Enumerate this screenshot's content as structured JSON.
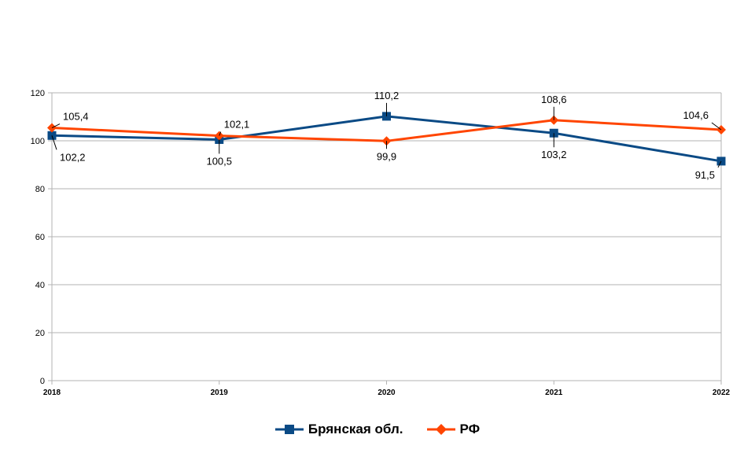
{
  "chart_data": {
    "type": "line",
    "title": "",
    "xlabel": "",
    "ylabel": "",
    "categories": [
      "2018",
      "2019",
      "2020",
      "2021",
      "2022"
    ],
    "ylim": [
      0,
      120
    ],
    "yticks": [
      "0",
      "20",
      "40",
      "60",
      "80",
      "100",
      "120"
    ],
    "grid": true,
    "legend_position": "bottom",
    "series": [
      {
        "name": "Брянская обл.",
        "color": "#0a4a85",
        "marker": "square",
        "values": [
          102.2,
          100.5,
          110.2,
          103.2,
          91.5
        ],
        "labels": [
          "102,2",
          "100,5",
          "110,2",
          "103,2",
          "91,5"
        ]
      },
      {
        "name": "РФ",
        "color": "#ff4500",
        "marker": "diamond",
        "values": [
          105.4,
          102.1,
          99.9,
          108.6,
          104.6
        ],
        "labels": [
          "105,4",
          "102,1",
          "99,9",
          "108,6",
          "104,6"
        ]
      }
    ]
  }
}
